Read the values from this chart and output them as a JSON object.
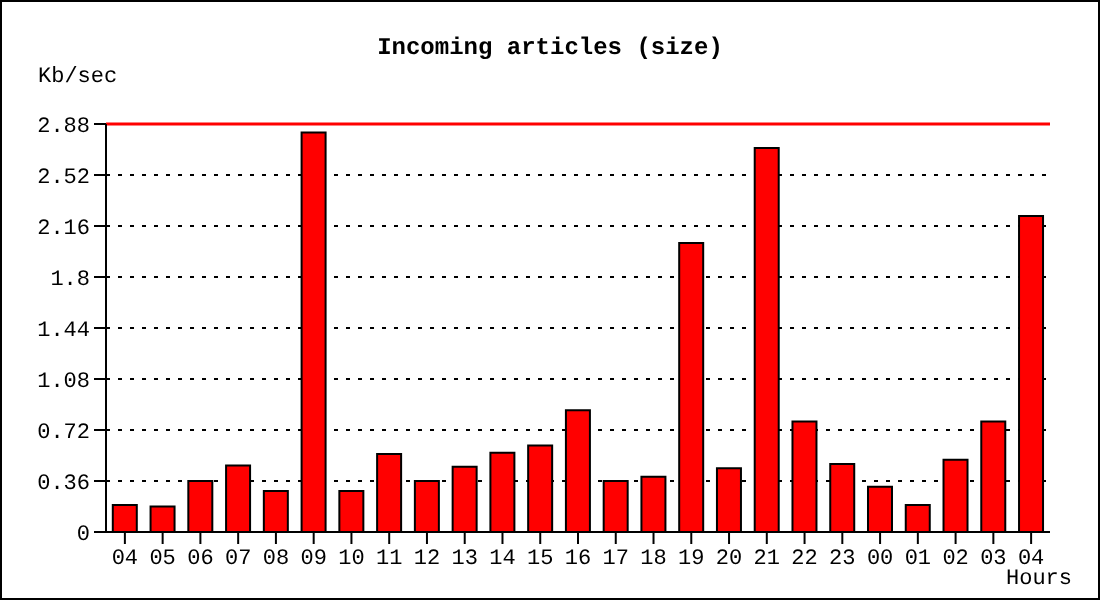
{
  "chart_data": {
    "type": "bar",
    "title": "Incoming articles (size)",
    "ylabel": "Kb/sec",
    "xlabel": "Hours",
    "categories": [
      "04",
      "05",
      "06",
      "07",
      "08",
      "09",
      "10",
      "11",
      "12",
      "13",
      "14",
      "15",
      "16",
      "17",
      "18",
      "19",
      "20",
      "21",
      "22",
      "23",
      "00",
      "01",
      "02",
      "03",
      "04"
    ],
    "values": [
      0.19,
      0.18,
      0.36,
      0.47,
      0.29,
      2.82,
      0.29,
      0.55,
      0.36,
      0.46,
      0.56,
      0.61,
      0.86,
      0.36,
      0.39,
      2.04,
      0.45,
      2.71,
      0.78,
      0.48,
      0.32,
      0.19,
      0.51,
      0.78,
      2.23
    ],
    "color": "#ff0000",
    "ylim": [
      0,
      2.88
    ],
    "yticks": [
      0,
      0.36,
      0.72,
      1.08,
      1.44,
      1.8,
      2.16,
      2.52,
      2.88
    ],
    "grid": "y",
    "line_style": "dotted",
    "ref_lines": [
      {
        "axis": "y",
        "value": 2.88,
        "color": "#ff0000"
      }
    ]
  }
}
